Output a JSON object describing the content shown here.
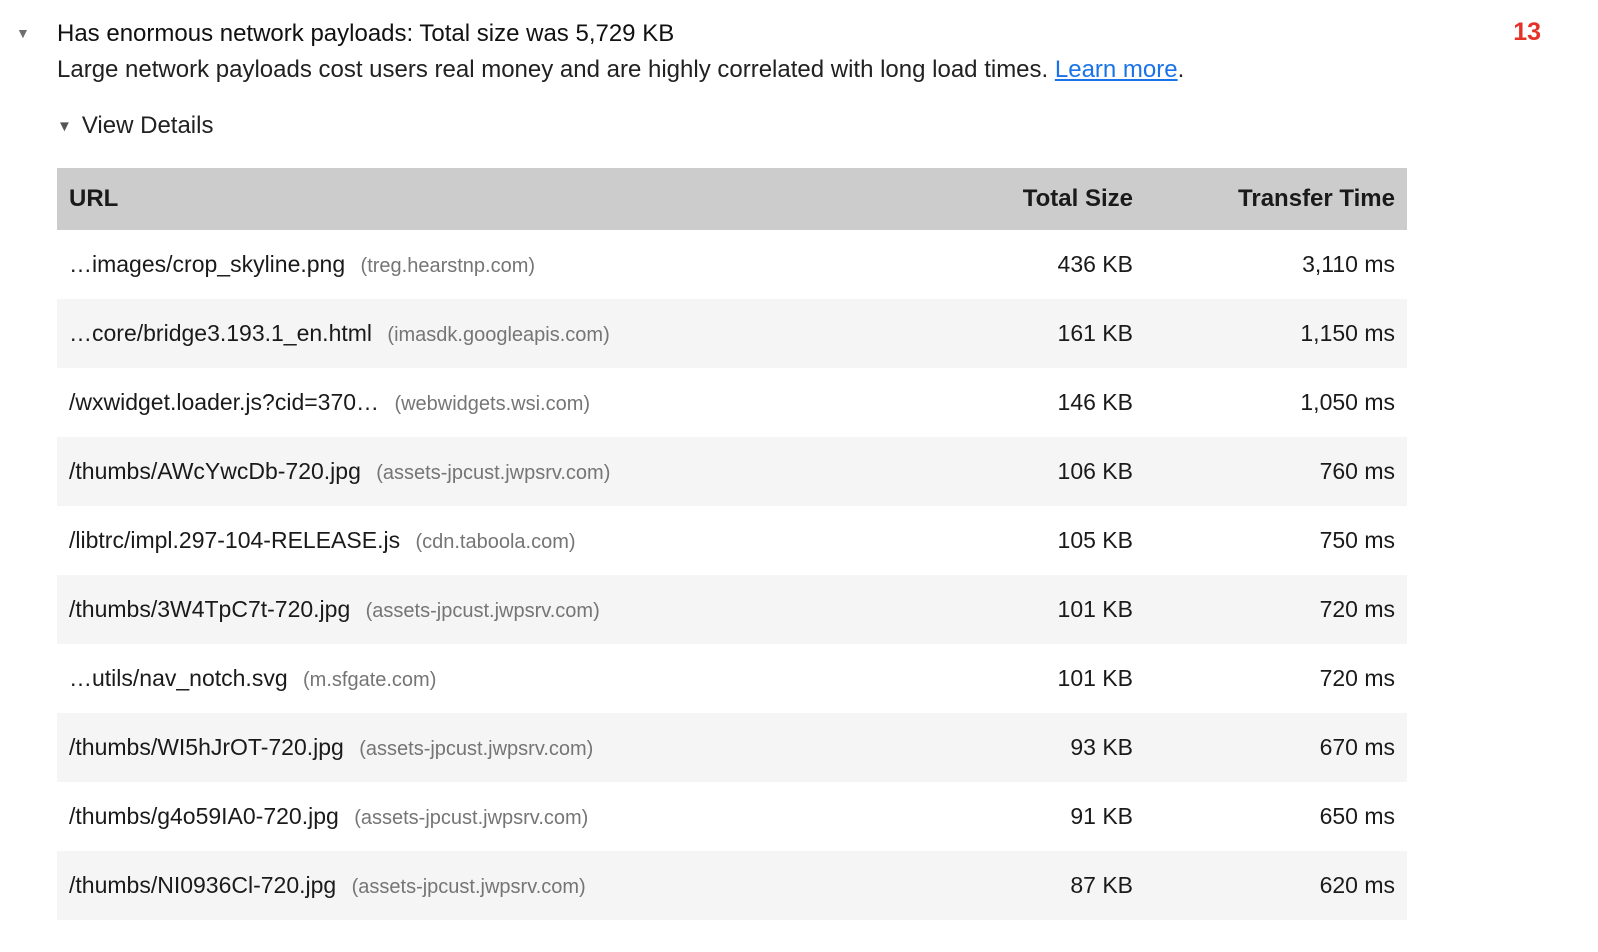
{
  "icons": {
    "triangle_down": "▼"
  },
  "colors": {
    "score_red": "#e53126",
    "link_blue": "#1a73e8",
    "table_header_gray": "#cccccc",
    "row_alt_gray": "#f5f5f5",
    "host_text_gray": "#757575"
  },
  "audit": {
    "title": "Has enormous network payloads: Total size was 5,729 KB",
    "description": "Large network payloads cost users real money and are highly correlated with long load times.",
    "learn_more_label": "Learn more",
    "period": ".",
    "score": "13",
    "view_details_label": "View Details"
  },
  "table": {
    "headers": {
      "url": "URL",
      "size": "Total Size",
      "time": "Transfer Time"
    },
    "rows": [
      {
        "url": "…images/crop_skyline.png",
        "host": "(treg.hearstnp.com)",
        "size": "436 KB",
        "time": "3,110 ms"
      },
      {
        "url": "…core/bridge3.193.1_en.html",
        "host": "(imasdk.googleapis.com)",
        "size": "161 KB",
        "time": "1,150 ms"
      },
      {
        "url": "/wxwidget.loader.js?cid=370…",
        "host": "(webwidgets.wsi.com)",
        "size": "146 KB",
        "time": "1,050 ms"
      },
      {
        "url": "/thumbs/AWcYwcDb-720.jpg",
        "host": "(assets-jpcust.jwpsrv.com)",
        "size": "106 KB",
        "time": "760 ms"
      },
      {
        "url": "/libtrc/impl.297-104-RELEASE.js",
        "host": "(cdn.taboola.com)",
        "size": "105 KB",
        "time": "750 ms"
      },
      {
        "url": "/thumbs/3W4TpC7t-720.jpg",
        "host": "(assets-jpcust.jwpsrv.com)",
        "size": "101 KB",
        "time": "720 ms"
      },
      {
        "url": "…utils/nav_notch.svg",
        "host": "(m.sfgate.com)",
        "size": "101 KB",
        "time": "720 ms"
      },
      {
        "url": "/thumbs/WI5hJrOT-720.jpg",
        "host": "(assets-jpcust.jwpsrv.com)",
        "size": "93 KB",
        "time": "670 ms"
      },
      {
        "url": "/thumbs/g4o59IA0-720.jpg",
        "host": "(assets-jpcust.jwpsrv.com)",
        "size": "91 KB",
        "time": "650 ms"
      },
      {
        "url": "/thumbs/NI0936Cl-720.jpg",
        "host": "(assets-jpcust.jwpsrv.com)",
        "size": "87 KB",
        "time": "620 ms"
      }
    ]
  }
}
